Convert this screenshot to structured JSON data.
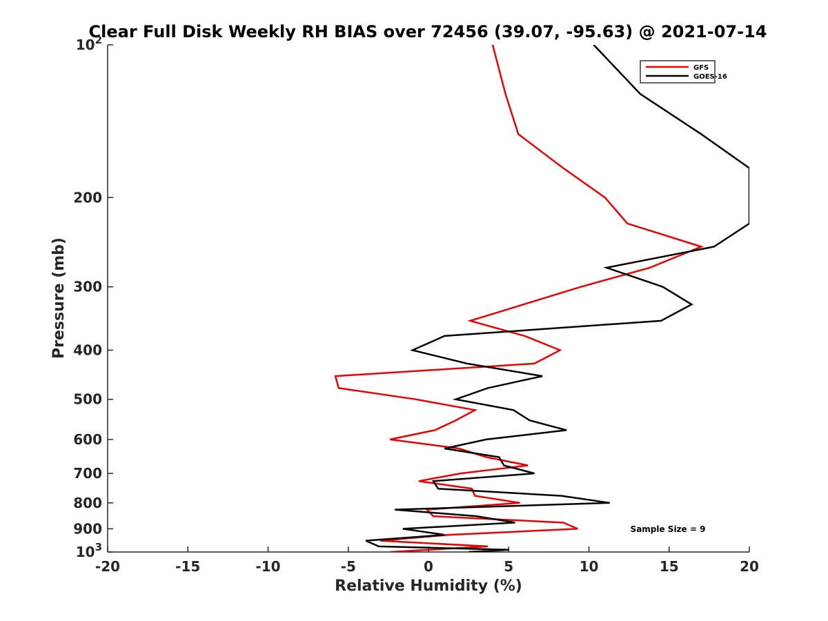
{
  "chart_data": {
    "type": "line",
    "title": "Clear Full Disk Weekly RH BIAS over 72456 (39.07, -95.63) @ 2021-07-14",
    "xlabel": "Relative Humidity (%)",
    "ylabel": "Pressure (mb)",
    "xlim": [
      -20,
      20
    ],
    "ylim": [
      100,
      1000
    ],
    "yscale": "log",
    "yreversed": true,
    "legend_position": "top-right",
    "x_ticks": [
      {
        "value": -20,
        "label": "-20"
      },
      {
        "value": -15,
        "label": "-15"
      },
      {
        "value": -10,
        "label": "-10"
      },
      {
        "value": -5,
        "label": "-5"
      },
      {
        "value": 0,
        "label": "0"
      },
      {
        "value": 5,
        "label": "5"
      },
      {
        "value": 10,
        "label": "10"
      },
      {
        "value": 15,
        "label": "15"
      },
      {
        "value": 20,
        "label": "20"
      }
    ],
    "y_ticks": [
      {
        "value": 100,
        "label": "10",
        "sup": "2"
      },
      {
        "value": 200,
        "label": "200"
      },
      {
        "value": 300,
        "label": "300"
      },
      {
        "value": 400,
        "label": "400"
      },
      {
        "value": 500,
        "label": "500"
      },
      {
        "value": 600,
        "label": "600"
      },
      {
        "value": 700,
        "label": "700"
      },
      {
        "value": 800,
        "label": "800"
      },
      {
        "value": 900,
        "label": "900"
      },
      {
        "value": 1000,
        "label": "10",
        "sup": "3"
      }
    ],
    "series": [
      {
        "name": "GFS",
        "color": "#e60000",
        "points": [
          [
            4.0,
            100
          ],
          [
            4.8,
            125
          ],
          [
            5.6,
            150
          ],
          [
            8.4,
            175
          ],
          [
            11.0,
            200
          ],
          [
            12.4,
            225
          ],
          [
            17.0,
            250
          ],
          [
            13.8,
            275
          ],
          [
            9.5,
            300
          ],
          [
            9.5,
            300
          ],
          [
            2.6,
            350
          ],
          [
            6.0,
            375
          ],
          [
            8.2,
            400
          ],
          [
            6.6,
            425
          ],
          [
            -5.8,
            450
          ],
          [
            -5.6,
            475
          ],
          [
            -0.8,
            500
          ],
          [
            2.9,
            525
          ],
          [
            1.7,
            550
          ],
          [
            0.4,
            575
          ],
          [
            -2.4,
            600
          ],
          [
            1.9,
            625
          ],
          [
            3.6,
            650
          ],
          [
            6.2,
            675
          ],
          [
            2.0,
            700
          ],
          [
            -0.6,
            725
          ],
          [
            2.7,
            750
          ],
          [
            2.9,
            775
          ],
          [
            5.7,
            800
          ],
          [
            -0.1,
            825
          ],
          [
            0.3,
            850
          ],
          [
            8.4,
            875
          ],
          [
            9.3,
            900
          ],
          [
            1.3,
            925
          ],
          [
            -3.0,
            950
          ],
          [
            3.7,
            975
          ],
          [
            -2.4,
            1000
          ]
        ]
      },
      {
        "name": "GOES-16",
        "color": "#000000",
        "points": [
          [
            10.3,
            100
          ],
          [
            13.2,
            125
          ],
          [
            17.0,
            150
          ],
          [
            20.0,
            175
          ],
          [
            20.0,
            225
          ],
          [
            17.8,
            250
          ],
          [
            11.1,
            275
          ],
          [
            14.6,
            300
          ],
          [
            16.4,
            325
          ],
          [
            14.5,
            350
          ],
          [
            1.0,
            375
          ],
          [
            -1.0,
            400
          ],
          [
            2.4,
            425
          ],
          [
            7.1,
            450
          ],
          [
            3.7,
            475
          ],
          [
            1.7,
            500
          ],
          [
            5.3,
            525
          ],
          [
            6.3,
            550
          ],
          [
            8.6,
            575
          ],
          [
            3.6,
            600
          ],
          [
            1.0,
            625
          ],
          [
            4.4,
            650
          ],
          [
            4.7,
            675
          ],
          [
            6.6,
            700
          ],
          [
            0.3,
            725
          ],
          [
            0.6,
            750
          ],
          [
            8.3,
            775
          ],
          [
            11.3,
            800
          ],
          [
            -2.1,
            825
          ],
          [
            3.0,
            850
          ],
          [
            5.4,
            875
          ],
          [
            -1.6,
            900
          ],
          [
            1.0,
            925
          ],
          [
            -3.9,
            950
          ],
          [
            -3.1,
            975
          ],
          [
            5.0,
            990
          ],
          [
            2.5,
            1000
          ]
        ]
      }
    ],
    "annotation": "Sample Size = 9"
  }
}
